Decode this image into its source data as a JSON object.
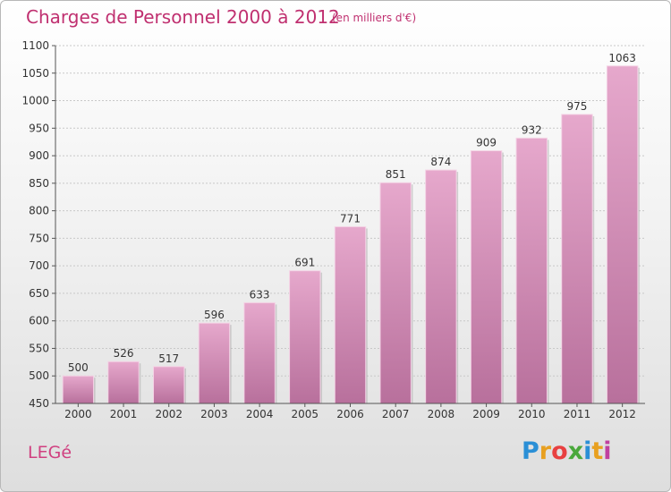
{
  "header": {
    "title": "Charges de Personnel 2000 à 2012",
    "subtitle": "(en milliers d'€)"
  },
  "footer": {
    "commune": "LEGé",
    "logo_letters": [
      "P",
      "r",
      "o",
      "x",
      "i",
      "t",
      "i"
    ],
    "logo_colors": [
      "#2a8fd6",
      "#e8a020",
      "#e84040",
      "#4aa83c",
      "#2a8fd6",
      "#e8a020",
      "#c040a0"
    ]
  },
  "colors": {
    "bar_top": "#e6a8cc",
    "bar_bottom": "#b8709c",
    "accent": "#c03070"
  },
  "chart_data": {
    "type": "bar",
    "categories": [
      "2000",
      "2001",
      "2002",
      "2003",
      "2004",
      "2005",
      "2006",
      "2007",
      "2008",
      "2009",
      "2010",
      "2011",
      "2012"
    ],
    "values": [
      500,
      526,
      517,
      596,
      633,
      691,
      771,
      851,
      874,
      909,
      932,
      975,
      1063
    ],
    "data_labels": [
      "500",
      "526",
      "517",
      "596",
      "633",
      "691",
      "771",
      "851",
      "874",
      "909",
      "932",
      "975",
      "1063"
    ],
    "ylim": [
      450,
      1100
    ],
    "yticks": [
      450,
      500,
      550,
      600,
      650,
      700,
      750,
      800,
      850,
      900,
      950,
      1000,
      1050,
      1100
    ],
    "grid": true
  }
}
